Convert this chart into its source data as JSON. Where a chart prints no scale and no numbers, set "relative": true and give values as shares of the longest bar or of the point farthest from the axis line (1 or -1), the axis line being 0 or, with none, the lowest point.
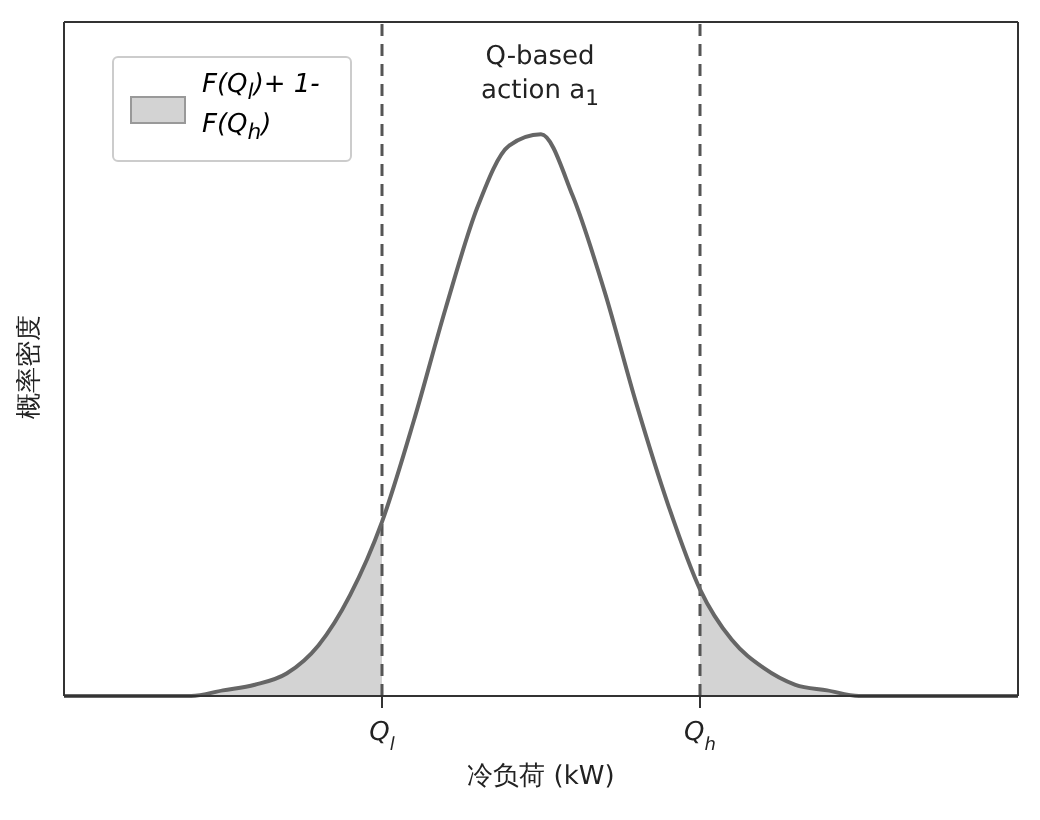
{
  "chart_data": {
    "type": "line",
    "xlabel": "冷负荷 (kW)",
    "ylabel": "概率密度",
    "relative": true,
    "categories": [
      null,
      null,
      null,
      null,
      null,
      null,
      null,
      null,
      null,
      null,
      "Q$_{l}$",
      null,
      null,
      null,
      null,
      null,
      null,
      null,
      null,
      null,
      "Q$_{h}$",
      null,
      null,
      null,
      null,
      null,
      null,
      null,
      null,
      null,
      null
    ],
    "series": [
      {
        "type": "area",
        "name": "F(Q$_{l}$)+ 1-F(Q$_{h}$)",
        "color": "#d3d3d3",
        "values": [
          0,
          0,
          0,
          0,
          0,
          0.01,
          0.02,
          0.04,
          0.09,
          0.18,
          0.31,
          null,
          null,
          null,
          null,
          null,
          null,
          null,
          null,
          null,
          0.19,
          0.1,
          0.05,
          0.02,
          0.01,
          0,
          0,
          0,
          0,
          0,
          0
        ]
      },
      {
        "color": "#666666",
        "values": [
          0,
          0,
          0,
          0,
          0,
          0.01,
          0.02,
          0.04,
          0.09,
          0.18,
          0.31,
          0.49,
          0.69,
          0.87,
          0.98,
          1,
          0.89,
          0.72,
          0.52,
          0.34,
          0.19,
          0.1,
          0.05,
          0.02,
          0.01,
          0,
          0,
          0,
          0,
          0,
          0
        ]
      }
    ],
    "ref_lines": [
      {
        "axis": "x",
        "value": "Q$_{l}$",
        "color": "#555555",
        "line_style": "dashed"
      },
      {
        "axis": "x",
        "value": "Q$_{h}$",
        "color": "#555555",
        "line_style": "dashed"
      }
    ],
    "annotations": [
      "Q-based action a$_{1}$"
    ],
    "legend": "top left",
    "grid": false,
    "marker": "none",
    "line_style": "solid"
  }
}
